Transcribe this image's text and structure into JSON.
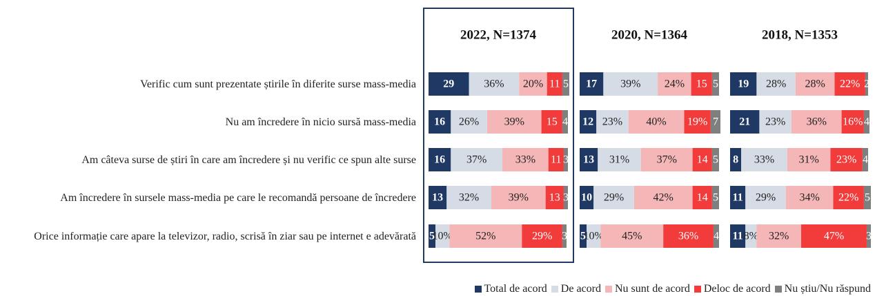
{
  "chart_data": {
    "type": "stacked-bar-h",
    "categories": [
      "Verific cum sunt prezentate știrile în diferite surse mass-media",
      "Nu am încredere în nicio sursă mass-media",
      "Am câteva surse de știri în care am încredere și nu verific ce spun alte surse",
      "Am încredere în sursele mass-media pe care le recomandă persoane de încredere",
      "Orice informație care apare la televizor, radio, scrisă în ziar sau pe internet e adevărată"
    ],
    "xlim": [
      0,
      100
    ],
    "series": [
      {
        "name": "Total de acord",
        "color": "#1f3864"
      },
      {
        "name": "De acord",
        "color": "#d6dce5"
      },
      {
        "name": "Nu sunt de acord",
        "color": "#f4b6b6"
      },
      {
        "name": "Deloc de acord",
        "color": "#f23c3c"
      },
      {
        "name": "Nu știu/Nu răspund",
        "color": "#7f7f7f"
      }
    ],
    "panels": [
      {
        "title": "2022, N=1374",
        "series": [
          {
            "values": [
              29,
              16,
              16,
              13,
              5
            ],
            "value_labels": [
              "29",
              "16",
              "16",
              "13",
              "5"
            ]
          },
          {
            "values": [
              36,
              26,
              37,
              32,
              10
            ],
            "value_labels": [
              "36%",
              "26%",
              "37%",
              "32%",
              "10%"
            ]
          },
          {
            "values": [
              20,
              39,
              33,
              39,
              52
            ],
            "value_labels": [
              "20%",
              "39%",
              "33%",
              "39%",
              "52%"
            ]
          },
          {
            "values": [
              11,
              15,
              11,
              13,
              29
            ],
            "value_labels": [
              "11",
              "15",
              "11",
              "13",
              "29%"
            ]
          },
          {
            "values": [
              5,
              4,
              3,
              3,
              3
            ],
            "value_labels": [
              "5",
              "4",
              "3",
              "3",
              "3"
            ]
          }
        ]
      },
      {
        "title": "2020, N=1364",
        "series": [
          {
            "values": [
              17,
              12,
              13,
              10,
              5
            ],
            "value_labels": [
              "17",
              "12",
              "13",
              "10",
              "5"
            ]
          },
          {
            "values": [
              39,
              23,
              31,
              29,
              10
            ],
            "value_labels": [
              "39%",
              "23%",
              "31%",
              "29%",
              "10%"
            ]
          },
          {
            "values": [
              24,
              40,
              37,
              42,
              45
            ],
            "value_labels": [
              "24%",
              "40%",
              "37%",
              "42%",
              "45%"
            ]
          },
          {
            "values": [
              15,
              19,
              14,
              14,
              36
            ],
            "value_labels": [
              "15",
              "19%",
              "14",
              "14",
              "36%"
            ]
          },
          {
            "values": [
              5,
              7,
              5,
              5,
              4
            ],
            "value_labels": [
              "5",
              "7",
              "5",
              "5",
              "4"
            ]
          }
        ]
      },
      {
        "title": "2018, N=1353",
        "series": [
          {
            "values": [
              19,
              21,
              8,
              11,
              11
            ],
            "value_labels": [
              "19",
              "21",
              "8",
              "11",
              "11"
            ]
          },
          {
            "values": [
              28,
              23,
              33,
              29,
              8
            ],
            "value_labels": [
              "28%",
              "23%",
              "33%",
              "29%",
              "8%"
            ]
          },
          {
            "values": [
              28,
              36,
              31,
              34,
              32
            ],
            "value_labels": [
              "28%",
              "36%",
              "31%",
              "34%",
              "32%"
            ]
          },
          {
            "values": [
              22,
              16,
              23,
              22,
              47
            ],
            "value_labels": [
              "22%",
              "16%",
              "23%",
              "22%",
              "47%"
            ]
          },
          {
            "values": [
              2,
              4,
              4,
              5,
              3
            ],
            "value_labels": [
              "2",
              "4",
              "4",
              "5",
              "3"
            ]
          }
        ]
      }
    ]
  }
}
